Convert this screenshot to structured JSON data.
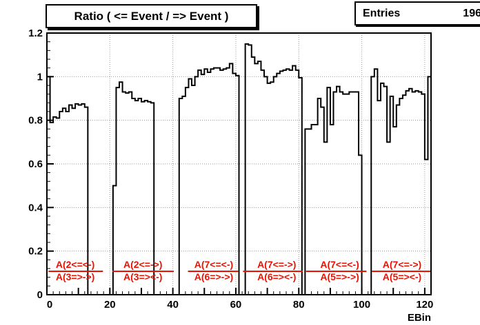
{
  "title": "Ratio ( <= Event / => Event )",
  "stats": {
    "label": "Entries",
    "value": "196"
  },
  "colors": {
    "histogram_line": "#000000",
    "annotation_red": "#ee1100",
    "grid": "#999999",
    "frame": "#000000",
    "background": "#ffffff"
  },
  "chart_data": {
    "type": "line",
    "style": "step-histogram",
    "title": "Ratio ( <= Event / => Event )",
    "entries": 196,
    "xlabel": "EBin",
    "ylabel": "",
    "xlim": [
      0,
      122
    ],
    "ylim": [
      0,
      1.2
    ],
    "grid": true,
    "x_start": 0,
    "bin_width": 1,
    "x_ticks": [
      0,
      20,
      40,
      60,
      80,
      100,
      120
    ],
    "x_tick_labels": [
      "0",
      "20",
      "40",
      "60",
      "80",
      "100",
      "120"
    ],
    "y_ticks": [
      0,
      0.2,
      0.4,
      0.6,
      0.8,
      1,
      1.2
    ],
    "y_tick_labels": [
      "0",
      "0.2",
      "0.4",
      "0.6",
      "0.8",
      "1",
      "1.2"
    ],
    "values": [
      1.0,
      0.79,
      0.815,
      0.81,
      0.84,
      0.855,
      0.84,
      0.87,
      0.855,
      0.875,
      0.87,
      0.875,
      0.86,
      0,
      0,
      0,
      0,
      0,
      0,
      0,
      0,
      0.5,
      0.95,
      0.975,
      0.93,
      0.925,
      0.93,
      0.9,
      0.89,
      0.9,
      0.885,
      0.89,
      0.885,
      0.88,
      0,
      0,
      0,
      0,
      0,
      0,
      0,
      0,
      0.9,
      0.91,
      0.95,
      0.99,
      0.96,
      1.0,
      1.03,
      1.01,
      1.035,
      1.02,
      1.035,
      1.04,
      1.04,
      1.03,
      1.035,
      1.04,
      1.06,
      1.015,
      1.005,
      0,
      0,
      1.15,
      1.145,
      1.09,
      1.06,
      1.07,
      1.03,
      1.0,
      0.97,
      0.975,
      1.0,
      1.015,
      1.025,
      1.03,
      1.035,
      1.03,
      1.05,
      1.03,
      0.995,
      0,
      0.76,
      0.76,
      0.78,
      0.78,
      0.9,
      0.86,
      0.7,
      0.95,
      0.78,
      0.93,
      0.955,
      0.93,
      0.92,
      0.92,
      0.93,
      0.93,
      0.93,
      0.64,
      0,
      0,
      0,
      1.0,
      1.035,
      0.89,
      0.97,
      0.955,
      0.7,
      0.91,
      0.77,
      0.87,
      0.9,
      0.915,
      0.935,
      0.945,
      0.93,
      0.935,
      0.93,
      0.92,
      0.62,
      1.0
    ],
    "annotations": [
      {
        "numerator": "A(2<=<-)",
        "denominator": "A(3=>->)",
        "center_x": 9.0,
        "line_x1": 0.5,
        "line_x2": 17.8
      },
      {
        "numerator": "A(2<=->)",
        "denominator": "A(3=><-)",
        "center_x": 30.5,
        "line_x1": 20.8,
        "line_x2": 40.3
      },
      {
        "numerator": "A(7<=<-)",
        "denominator": "A(6=>->)",
        "center_x": 53.0,
        "line_x1": 44.8,
        "line_x2": 60.9
      },
      {
        "numerator": "A(7<=->)",
        "denominator": "A(6=><-)",
        "center_x": 73.0,
        "line_x1": 62.3,
        "line_x2": 81.2
      },
      {
        "numerator": "A(7<=<-)",
        "denominator": "A(5=>->)",
        "center_x": 93.0,
        "line_x1": 82.3,
        "line_x2": 101.5
      },
      {
        "numerator": "A(7<=->)",
        "denominator": "A(5=><-)",
        "center_x": 112.8,
        "line_x1": 103.2,
        "line_x2": 122.0
      }
    ]
  }
}
